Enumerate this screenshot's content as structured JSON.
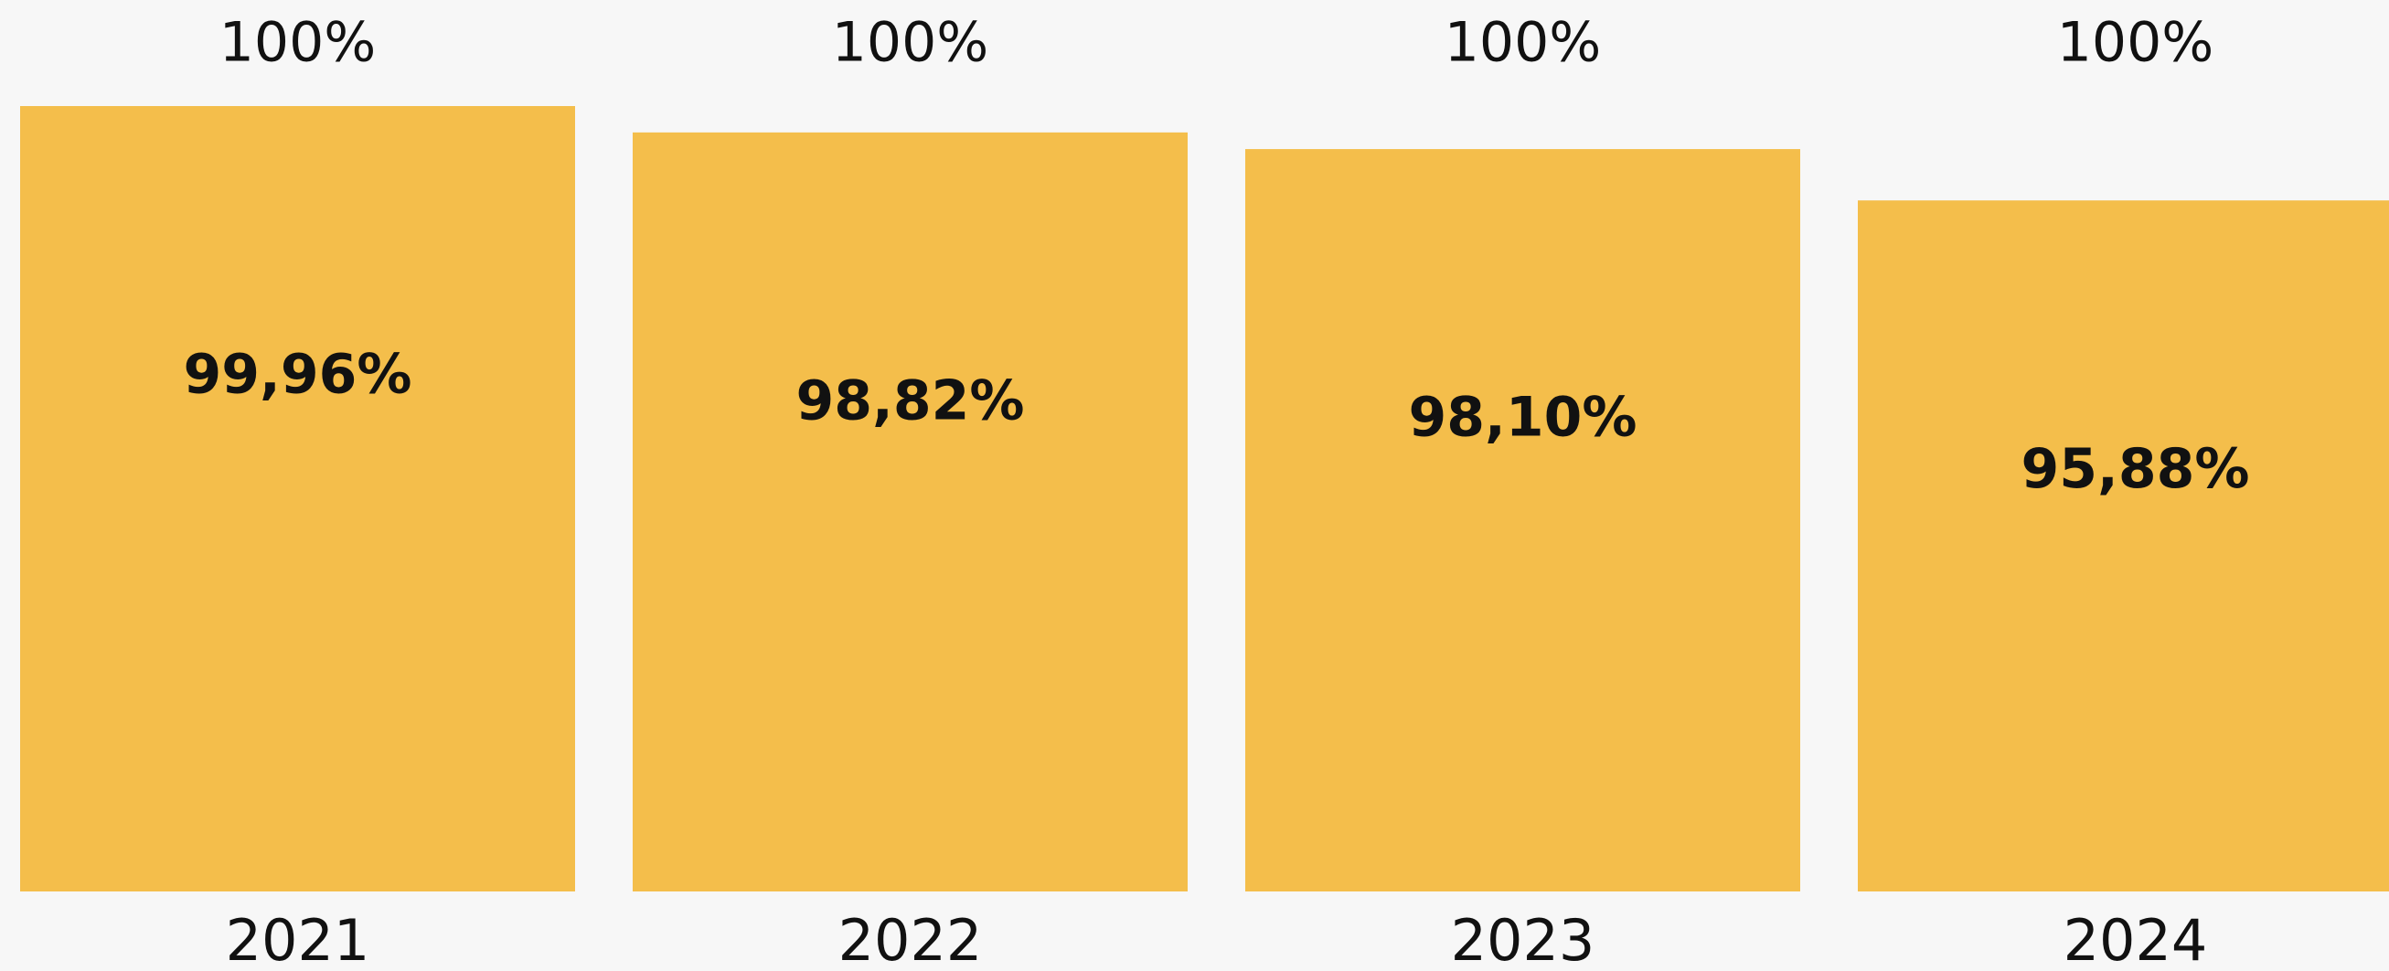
{
  "chart_data": {
    "type": "bar",
    "categories": [
      "2021",
      "2022",
      "2023",
      "2024"
    ],
    "values": [
      99.96,
      98.82,
      98.1,
      95.88
    ],
    "value_labels": [
      "99,96%",
      "98,82%",
      "98,10%",
      "95,88%"
    ],
    "totals": [
      100,
      100,
      100,
      100
    ],
    "total_labels": [
      "100%",
      "100%",
      "100%",
      "100%"
    ],
    "color": "#f4be4b",
    "ylim": [
      66,
      100
    ]
  }
}
